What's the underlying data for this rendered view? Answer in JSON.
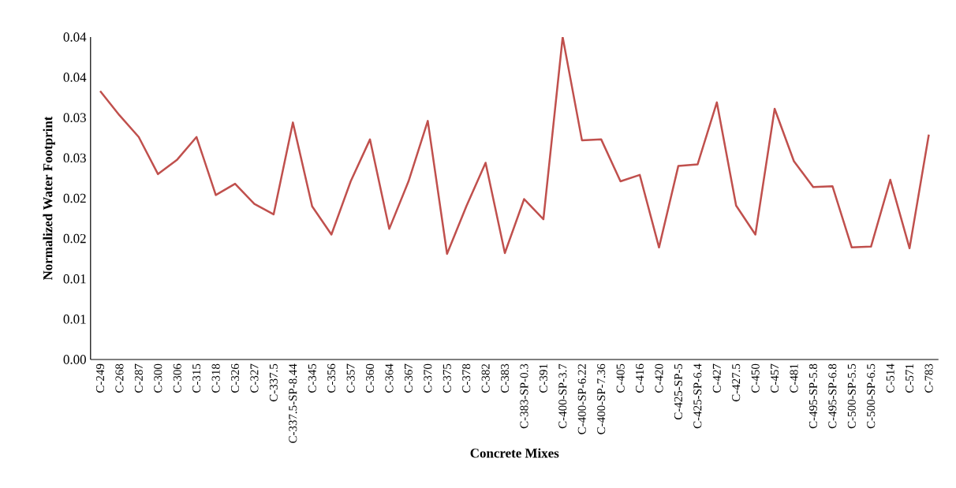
{
  "chart_data": {
    "type": "line",
    "xlabel": "Concrete Mixes",
    "ylabel": "Normalized Water Footprint",
    "categories": [
      "C-249",
      "C-268",
      "C-287",
      "C-300",
      "C-306",
      "C-315",
      "C-318",
      "C-326",
      "C-327",
      "C-337.5",
      "C-337.5-SP-8.44",
      "C-345",
      "C-356",
      "C-357",
      "C-360",
      "C-364",
      "C-367",
      "C-370",
      "C-375",
      "C-378",
      "C-382",
      "C-383",
      "C-383-SP-0.3",
      "C-391",
      "C-400-SP-3.7",
      "C-400-SP-6.22",
      "C-400-SP-7.36",
      "C-405",
      "C-416",
      "C-420",
      "C-425-SP-5",
      "C-425-SP-6.4",
      "C-427",
      "C-427.5",
      "C-450",
      "C-457",
      "C-481",
      "C-495-SP-5.8",
      "C-495-SP-6.8",
      "C-500-SP-5.5",
      "C-500-SP-6.5",
      "C-514",
      "C-571",
      "C-783"
    ],
    "series": [
      {
        "color": "#c0504d",
        "values": [
          0.0333,
          0.0303,
          0.0276,
          0.023,
          0.0248,
          0.0276,
          0.0204,
          0.0218,
          0.0193,
          0.018,
          0.0294,
          0.019,
          0.0155,
          0.0221,
          0.0273,
          0.0162,
          0.0221,
          0.0296,
          0.0131,
          0.019,
          0.0244,
          0.0132,
          0.0199,
          0.0174,
          0.04,
          0.0272,
          0.0273,
          0.0221,
          0.0229,
          0.0139,
          0.024,
          0.0242,
          0.0319,
          0.0191,
          0.0155,
          0.0311,
          0.0246,
          0.0214,
          0.0215,
          0.0139,
          0.014,
          0.0223,
          0.0138,
          0.0279
        ]
      }
    ],
    "ylim": [
      0,
      0.04
    ],
    "yticks": [
      {
        "value": 0,
        "label": "0.00"
      },
      {
        "value": 0.005,
        "label": "0.01"
      },
      0.01,
      {
        "value": 0.015,
        "label": "0.02"
      },
      0.02,
      {
        "value": 0.025,
        "label": "0.03"
      },
      0.03,
      {
        "value": 0.035,
        "label": "0.04"
      },
      0.04
    ],
    "grid": false,
    "legend": false,
    "marker": "none",
    "line_style": "solid"
  }
}
